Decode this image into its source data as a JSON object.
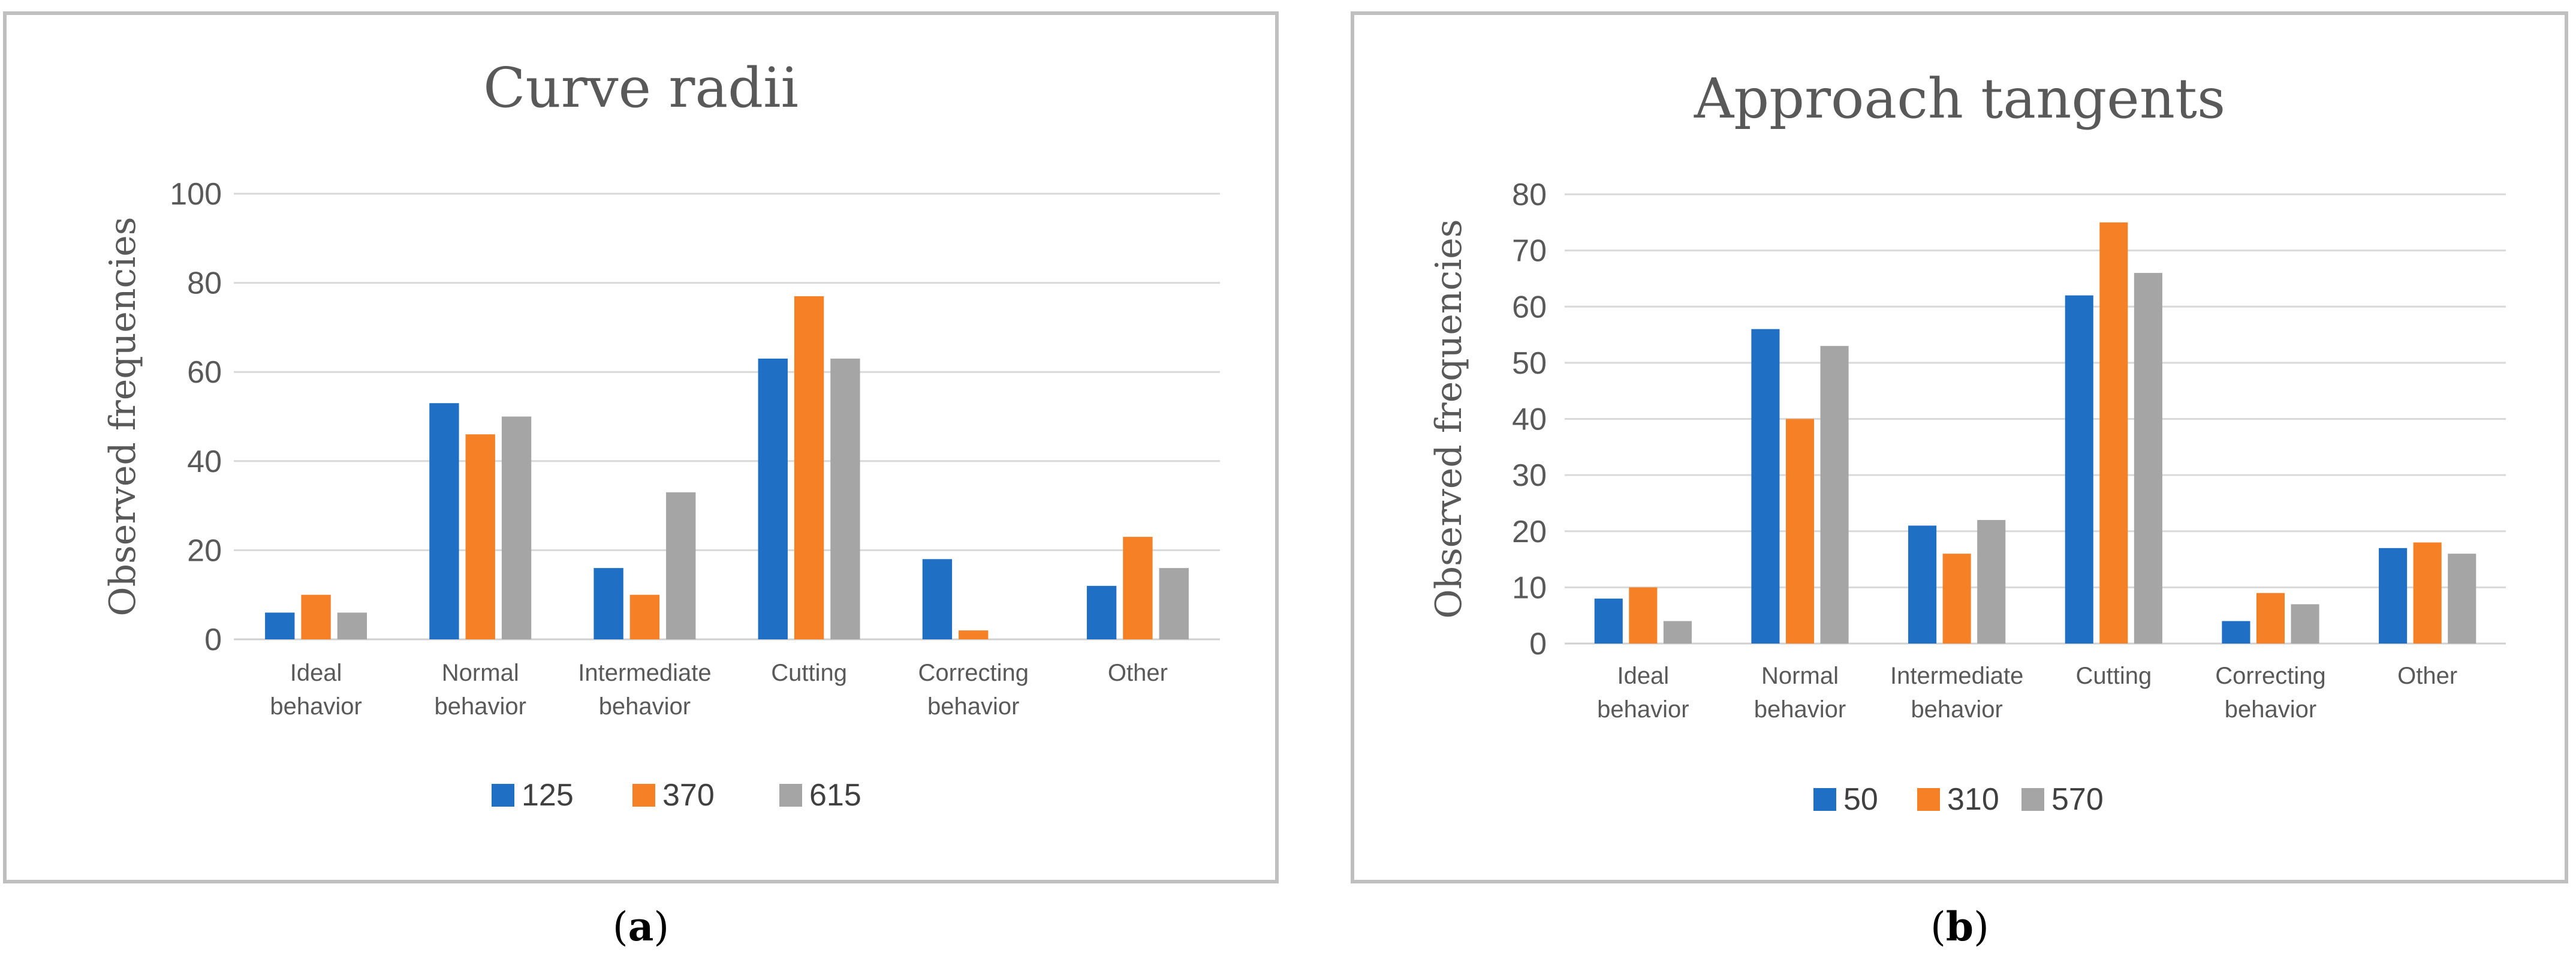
{
  "colors": [
    "#1F6FC5",
    "#F58025",
    "#A5A5A5"
  ],
  "chart_data": [
    {
      "type": "bar",
      "title": "Curve radii",
      "ylabel": "Observed frequencies",
      "xlabel": "",
      "ylim": [
        0,
        100
      ],
      "yticks": [
        "0",
        "20",
        "40",
        "60",
        "80",
        "100"
      ],
      "categories": [
        [
          "Ideal",
          "behavior"
        ],
        [
          "Normal",
          "behavior"
        ],
        [
          "Intermediate",
          "behavior"
        ],
        [
          "Cutting"
        ],
        [
          "Correcting",
          "behavior"
        ],
        [
          "Other"
        ]
      ],
      "series": [
        {
          "name": "125",
          "values": [
            6,
            53,
            16,
            63,
            18,
            12
          ]
        },
        {
          "name": "370",
          "values": [
            10,
            46,
            10,
            77,
            2,
            23
          ]
        },
        {
          "name": "615",
          "values": [
            6,
            50,
            33,
            63,
            0,
            16
          ]
        }
      ],
      "legend": "bottom",
      "grid": true,
      "panel_label": {
        "open": "(",
        "letter": "a",
        "close": ")"
      }
    },
    {
      "type": "bar",
      "title": "Approach tangents",
      "ylabel": "Observed frequencies",
      "xlabel": "",
      "ylim": [
        0,
        80
      ],
      "yticks": [
        "0",
        "10",
        "20",
        "30",
        "40",
        "50",
        "60",
        "70",
        "80"
      ],
      "categories": [
        [
          "Ideal",
          "behavior"
        ],
        [
          "Normal",
          "behavior"
        ],
        [
          "Intermediate",
          "behavior"
        ],
        [
          "Cutting"
        ],
        [
          "Correcting",
          "behavior"
        ],
        [
          "Other"
        ]
      ],
      "series": [
        {
          "name": "50",
          "values": [
            8,
            56,
            21,
            62,
            4,
            17
          ]
        },
        {
          "name": "310",
          "values": [
            10,
            40,
            16,
            75,
            9,
            18
          ]
        },
        {
          "name": "570",
          "values": [
            4,
            53,
            22,
            66,
            7,
            16
          ]
        }
      ],
      "legend": "bottom",
      "grid": true,
      "panel_label": {
        "open": "(",
        "letter": "b",
        "close": ")"
      }
    }
  ]
}
